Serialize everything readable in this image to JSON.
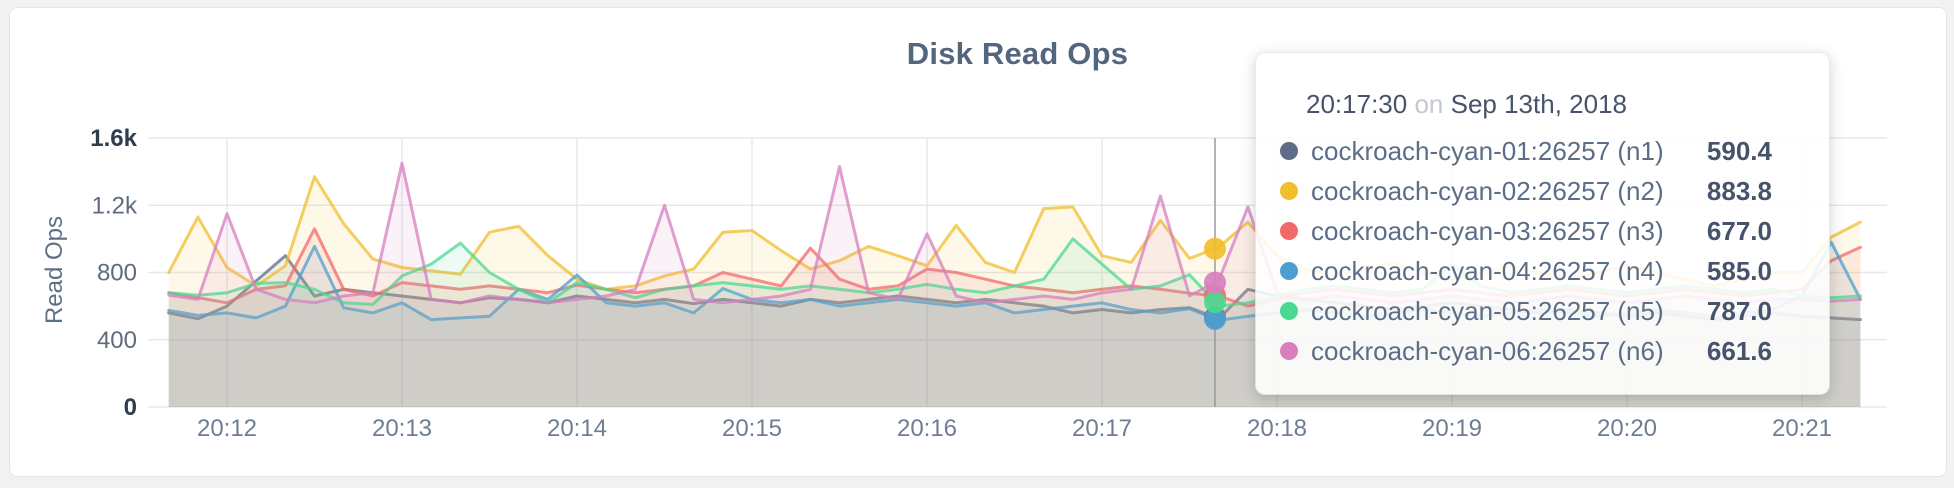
{
  "page": {
    "background": "#f2f2f3",
    "card_background": "#ffffff"
  },
  "tooltip": {
    "time": "20:17:30",
    "conjunction": "on",
    "date": "Sep 13th, 2018"
  },
  "chart_data": {
    "type": "line",
    "title": "Disk Read Ops",
    "ylabel": "Read Ops",
    "ylim": [
      0,
      1600
    ],
    "grid": true,
    "x_start_time": "20:11:40",
    "x_interval_seconds": 10,
    "x_ticks": [
      "20:12",
      "20:13",
      "20:14",
      "20:15",
      "20:16",
      "20:17",
      "20:18",
      "20:19",
      "20:20",
      "20:21"
    ],
    "y_ticks": [
      {
        "label": "1.6k",
        "value": 1600,
        "bold": true
      },
      {
        "label": "1.2k",
        "value": 1200,
        "bold": false
      },
      {
        "label": "800",
        "value": 800,
        "bold": false
      },
      {
        "label": "400",
        "value": 400,
        "bold": false
      },
      {
        "label": "0",
        "value": 0,
        "bold": true
      }
    ],
    "hover": {
      "time": "20:17:30",
      "x_index": 35,
      "values": [
        590.4,
        883.8,
        677.0,
        585.0,
        787.0,
        661.6
      ]
    },
    "series": [
      {
        "id": "n1",
        "name": "cockroach-cyan-01:26257 (n1)",
        "color": "#5F6C87",
        "values": [
          560,
          525,
          600,
          750,
          900,
          660,
          700,
          680,
          660,
          640,
          620,
          650,
          640,
          620,
          660,
          640,
          620,
          640,
          615,
          640,
          620,
          600,
          640,
          620,
          640,
          660,
          640,
          620,
          640,
          620,
          600,
          560,
          580,
          560,
          580,
          590.4,
          525,
          700,
          660,
          640,
          620,
          600,
          580,
          600,
          620,
          600,
          580,
          560,
          580,
          560,
          540,
          560,
          540,
          520,
          540,
          560,
          540,
          530,
          520
        ]
      },
      {
        "id": "n2",
        "name": "cockroach-cyan-02:26257 (n2)",
        "color": "#F2BE2C",
        "values": [
          800,
          1130,
          830,
          720,
          840,
          1370,
          1090,
          880,
          830,
          810,
          790,
          1040,
          1075,
          900,
          760,
          700,
          720,
          780,
          820,
          1040,
          1050,
          930,
          820,
          870,
          955,
          900,
          840,
          1080,
          860,
          800,
          1180,
          1190,
          900,
          860,
          1110,
          883.8,
          950,
          1100,
          900,
          820,
          780,
          820,
          860,
          800,
          760,
          800,
          840,
          800,
          760,
          800,
          840,
          800,
          760,
          720,
          760,
          800,
          800,
          1010,
          1100
        ]
      },
      {
        "id": "n3",
        "name": "cockroach-cyan-03:26257 (n3)",
        "color": "#F16969",
        "values": [
          680,
          650,
          620,
          700,
          720,
          1060,
          700,
          660,
          740,
          720,
          700,
          720,
          700,
          680,
          725,
          700,
          680,
          700,
          720,
          800,
          760,
          720,
          945,
          760,
          700,
          720,
          820,
          800,
          760,
          720,
          700,
          680,
          700,
          720,
          700,
          677,
          660,
          600,
          640,
          680,
          700,
          680,
          660,
          680,
          700,
          680,
          660,
          680,
          700,
          680,
          660,
          680,
          700,
          680,
          660,
          680,
          700,
          870,
          950
        ]
      },
      {
        "id": "n4",
        "name": "cockroach-cyan-04:26257 (n4)",
        "color": "#4E9FD1",
        "values": [
          575,
          545,
          560,
          530,
          600,
          955,
          590,
          560,
          620,
          520,
          530,
          540,
          700,
          640,
          785,
          620,
          600,
          620,
          560,
          705,
          640,
          620,
          640,
          600,
          620,
          640,
          620,
          600,
          620,
          560,
          580,
          600,
          620,
          580,
          560,
          585,
          515,
          540,
          560,
          580,
          560,
          540,
          560,
          580,
          560,
          540,
          560,
          580,
          560,
          540,
          560,
          580,
          560,
          540,
          560,
          580,
          660,
          980,
          640
        ]
      },
      {
        "id": "n5",
        "name": "cockroach-cyan-05:26257 (n5)",
        "color": "#49D990",
        "values": [
          680,
          665,
          680,
          735,
          740,
          700,
          620,
          610,
          780,
          850,
          975,
          800,
          700,
          620,
          740,
          700,
          650,
          700,
          720,
          740,
          720,
          700,
          720,
          700,
          680,
          700,
          730,
          700,
          680,
          720,
          760,
          1000,
          850,
          700,
          720,
          787,
          600,
          620,
          660,
          700,
          720,
          700,
          680,
          700,
          850,
          720,
          680,
          700,
          720,
          700,
          680,
          700,
          720,
          700,
          680,
          700,
          660,
          650,
          660
        ]
      },
      {
        "id": "n6",
        "name": "cockroach-cyan-06:26257 (n6)",
        "color": "#D77FBF",
        "values": [
          665,
          640,
          1150,
          700,
          640,
          620,
          660,
          680,
          1450,
          640,
          620,
          660,
          640,
          620,
          640,
          660,
          700,
          1200,
          640,
          620,
          640,
          660,
          700,
          1430,
          680,
          640,
          1030,
          660,
          620,
          640,
          660,
          640,
          680,
          700,
          1255,
          661.6,
          752,
          1190,
          680,
          640,
          660,
          640,
          620,
          640,
          660,
          640,
          620,
          640,
          660,
          640,
          620,
          640,
          660,
          640,
          620,
          640,
          640,
          630,
          640
        ]
      }
    ]
  }
}
